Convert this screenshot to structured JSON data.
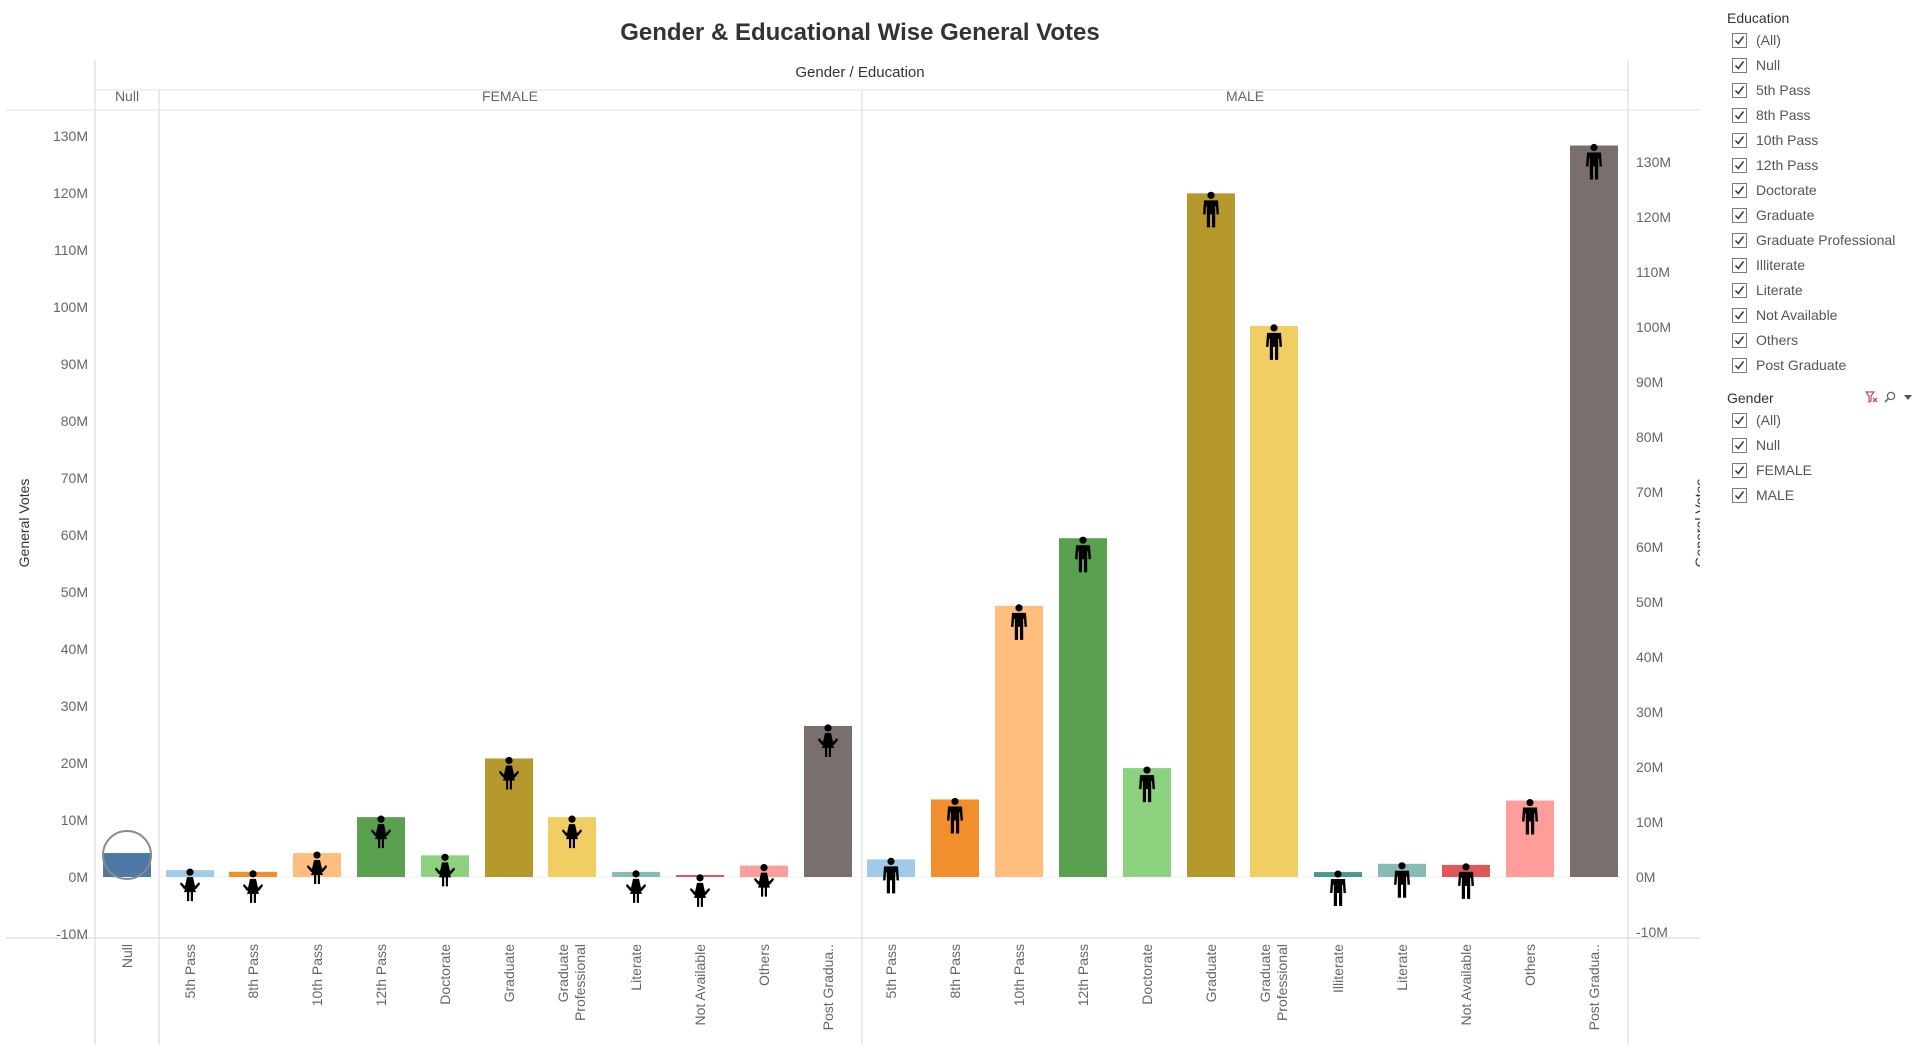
{
  "chart_data": {
    "type": "bar",
    "title": "Gender & Educational Wise General Votes",
    "column_header": "Gender / Education",
    "ylabel": "General Votes",
    "ylim": [
      -10000000,
      135000000
    ],
    "yticks": [
      "-10M",
      "0M",
      "10M",
      "20M",
      "30M",
      "40M",
      "50M",
      "60M",
      "70M",
      "80M",
      "90M",
      "100M",
      "110M",
      "120M",
      "130M"
    ],
    "ytick_values": [
      -10000000,
      0,
      10000000,
      20000000,
      30000000,
      40000000,
      50000000,
      60000000,
      70000000,
      80000000,
      90000000,
      100000000,
      110000000,
      120000000,
      130000000
    ],
    "right_axis": {
      "ylabel": "General Votes",
      "ylim": [
        -10000000,
        140000000
      ],
      "yticks": [
        "-10M",
        "0M",
        "10M",
        "20M",
        "30M",
        "40M",
        "50M",
        "60M",
        "70M",
        "80M",
        "90M",
        "100M",
        "110M",
        "120M",
        "130M"
      ],
      "ytick_values": [
        -10000000,
        0,
        10000000,
        20000000,
        30000000,
        40000000,
        50000000,
        60000000,
        70000000,
        80000000,
        90000000,
        100000000,
        110000000,
        120000000,
        130000000
      ]
    },
    "groups": [
      {
        "name": "Null",
        "axis": "left",
        "bars": [
          {
            "category": "Null",
            "value": 4200000,
            "color": "#4e79a7",
            "icon": "circle-half-icon"
          }
        ]
      },
      {
        "name": "FEMALE",
        "axis": "left",
        "bars": [
          {
            "category": "5th Pass",
            "value": 1200000,
            "color": "#a0cbe8",
            "icon": "female-person-icon"
          },
          {
            "category": "8th Pass",
            "value": 900000,
            "color": "#f28e2b",
            "icon": "female-person-icon"
          },
          {
            "category": "10th Pass",
            "value": 4200000,
            "color": "#ffbe7d",
            "icon": "female-person-icon"
          },
          {
            "category": "12th Pass",
            "value": 10500000,
            "color": "#59a14f",
            "icon": "female-person-icon"
          },
          {
            "category": "Doctorate",
            "value": 3800000,
            "color": "#8cd17d",
            "icon": "female-person-icon"
          },
          {
            "category": "Graduate",
            "value": 20800000,
            "color": "#b6992d",
            "icon": "female-person-icon"
          },
          {
            "category": "Graduate Professional",
            "value": 10500000,
            "color": "#f1ce63",
            "icon": "female-person-icon"
          },
          {
            "category": "Literate",
            "value": 900000,
            "color": "#86bcb6",
            "icon": "female-person-icon"
          },
          {
            "category": "Not Available",
            "value": 200000,
            "color": "#e15759",
            "icon": "female-person-icon"
          },
          {
            "category": "Others",
            "value": 2000000,
            "color": "#ff9d9a",
            "icon": "female-person-icon"
          },
          {
            "category": "Post Gradua..",
            "value": 26500000,
            "color": "#79706e",
            "icon": "female-person-icon"
          }
        ]
      },
      {
        "name": "MALE",
        "axis": "right",
        "bars": [
          {
            "category": "5th Pass",
            "value": 3200000,
            "color": "#a0cbe8",
            "icon": "male-person-icon"
          },
          {
            "category": "8th Pass",
            "value": 14100000,
            "color": "#f28e2b",
            "icon": "male-person-icon"
          },
          {
            "category": "10th Pass",
            "value": 49300000,
            "color": "#ffbe7d",
            "icon": "male-person-icon"
          },
          {
            "category": "12th Pass",
            "value": 61600000,
            "color": "#59a14f",
            "icon": "male-person-icon"
          },
          {
            "category": "Doctorate",
            "value": 19800000,
            "color": "#8cd17d",
            "icon": "male-person-icon"
          },
          {
            "category": "Graduate",
            "value": 124300000,
            "color": "#b6992d",
            "icon": "male-person-icon"
          },
          {
            "category": "Graduate Professional",
            "value": 100200000,
            "color": "#f1ce63",
            "icon": "male-person-icon"
          },
          {
            "category": "Illiterate",
            "value": 900000,
            "color": "#499894",
            "icon": "male-person-icon"
          },
          {
            "category": "Literate",
            "value": 2400000,
            "color": "#86bcb6",
            "icon": "male-person-icon"
          },
          {
            "category": "Not Available",
            "value": 2200000,
            "color": "#e15759",
            "icon": "male-person-icon"
          },
          {
            "category": "Others",
            "value": 13900000,
            "color": "#ff9d9a",
            "icon": "male-person-icon"
          },
          {
            "category": "Post Gradua..",
            "value": 133000000,
            "color": "#79706e",
            "icon": "male-person-icon"
          }
        ]
      }
    ]
  },
  "filters": {
    "education": {
      "title": "Education",
      "items": [
        "(All)",
        "Null",
        "5th Pass",
        "8th Pass",
        "10th Pass",
        "12th Pass",
        "Doctorate",
        "Graduate",
        "Graduate Professional",
        "Illiterate",
        "Literate",
        "Not Available",
        "Others",
        "Post Graduate"
      ],
      "checked": true
    },
    "gender": {
      "title": "Gender",
      "items": [
        "(All)",
        "Null",
        "FEMALE",
        "MALE"
      ],
      "checked": true,
      "tool_icons": [
        "clear-filter-icon",
        "search-icon",
        "dropdown-arrow-icon"
      ]
    }
  }
}
